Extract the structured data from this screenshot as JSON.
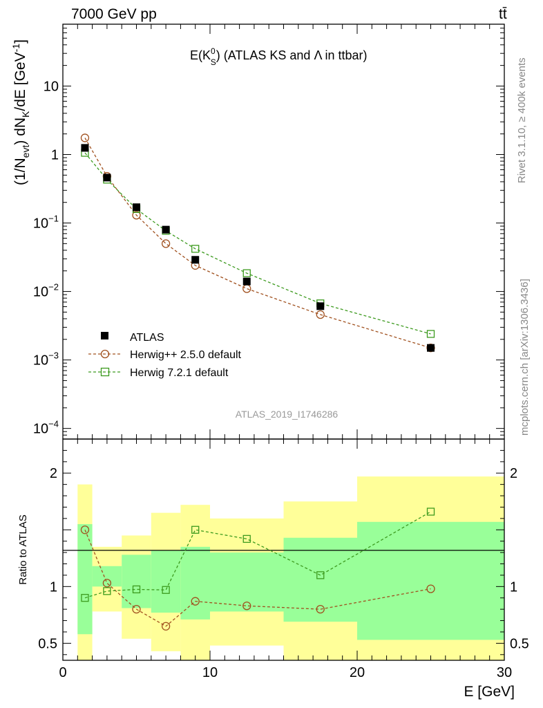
{
  "header": {
    "left": "7000 GeV pp",
    "right": "tt̄"
  },
  "side_labels": {
    "rivet": "Rivet 3.1.10, ≥ 400k events",
    "mcplots": "mcplots.cern.ch [arXiv:1306.3436]"
  },
  "chart_data": [
    {
      "type": "line",
      "panel": "main",
      "title": "E(K_S^0) (ATLAS KS and Λ in ttbar)",
      "title_parts": {
        "base": "E(K",
        "sup": "0",
        "sub": "S",
        "rest": ") (ATLAS KS and Λ in ttbar)"
      },
      "ylabel": "(1/N_evt) dN_K/dE [GeV^-1]",
      "ylabel_parts": {
        "a": "(1/N",
        "a_sub": "evt",
        "b": ") dN",
        "b_sub": "K",
        "c": "/dE [GeV",
        "c_sup": "-1",
        "d": "]"
      },
      "yscale": "log",
      "ylim": [
        7e-05,
        80
      ],
      "xlim": [
        0,
        30
      ],
      "y_ticks": [
        {
          "value": 10,
          "label": "10"
        },
        {
          "value": 1,
          "label": "1"
        },
        {
          "value": 0.1,
          "label": "10",
          "exp": "−1"
        },
        {
          "value": 0.01,
          "label": "10",
          "exp": "−2"
        },
        {
          "value": 0.001,
          "label": "10",
          "exp": "−3"
        },
        {
          "value": 0.0001,
          "label": "10",
          "exp": "−4"
        }
      ],
      "watermark": "ATLAS_2019_I1746286",
      "legend_position": "bottom-left",
      "x": [
        1.5,
        3,
        5,
        7,
        9,
        12.5,
        17.5,
        25
      ],
      "series": [
        {
          "name": "ATLAS",
          "marker": "filled-square",
          "color": "#000000",
          "values": [
            1.25,
            0.46,
            0.17,
            0.08,
            0.029,
            0.014,
            0.0061,
            0.0015
          ]
        },
        {
          "name": "Herwig++ 2.5.0 default",
          "marker": "open-circle",
          "color": "#a0501e",
          "values": [
            1.75,
            0.48,
            0.13,
            0.05,
            0.024,
            0.011,
            0.0046,
            0.0015
          ]
        },
        {
          "name": "Herwig 7.2.1 default",
          "marker": "open-square",
          "color": "#3c9a1e",
          "values": [
            1.06,
            0.43,
            0.16,
            0.077,
            0.042,
            0.0185,
            0.0067,
            0.0024
          ]
        }
      ]
    },
    {
      "type": "line",
      "panel": "ratio",
      "ylabel": "Ratio to ATLAS",
      "xlabel": "E [GeV]",
      "ylim": [
        0.35,
        2.3
      ],
      "xlim": [
        0,
        30
      ],
      "x_ticks": [
        0,
        10,
        20,
        30
      ],
      "y_ticks": [
        0.5,
        1,
        2
      ],
      "bands": {
        "bin_edges": [
          1,
          2,
          4,
          6,
          8,
          10,
          15,
          20,
          30
        ],
        "yellow_lo": [
          0.35,
          0.78,
          0.54,
          0.43,
          0.35,
          0.48,
          0.35,
          0.35
        ],
        "yellow_hi": [
          1.9,
          1.35,
          1.45,
          1.65,
          1.72,
          1.6,
          1.75,
          1.97
        ],
        "green_lo": [
          0.58,
          1.0,
          0.81,
          0.77,
          0.71,
          0.78,
          0.69,
          0.53
        ],
        "green_hi": [
          1.55,
          1.18,
          1.28,
          1.32,
          1.35,
          1.3,
          1.43,
          1.57
        ]
      },
      "x": [
        1.5,
        3,
        5,
        7,
        9,
        12.5,
        17.5,
        25
      ],
      "series": [
        {
          "name": "Herwig++ 2.5.0 default",
          "marker": "open-circle",
          "color": "#a0501e",
          "values": [
            1.5,
            1.03,
            0.8,
            0.65,
            0.87,
            0.83,
            0.8,
            0.98
          ]
        },
        {
          "name": "Herwig 7.2.1 default",
          "marker": "open-square",
          "color": "#3c9a1e",
          "values": [
            0.9,
            0.96,
            0.975,
            0.97,
            1.5,
            1.42,
            1.1,
            1.66
          ]
        }
      ]
    }
  ]
}
